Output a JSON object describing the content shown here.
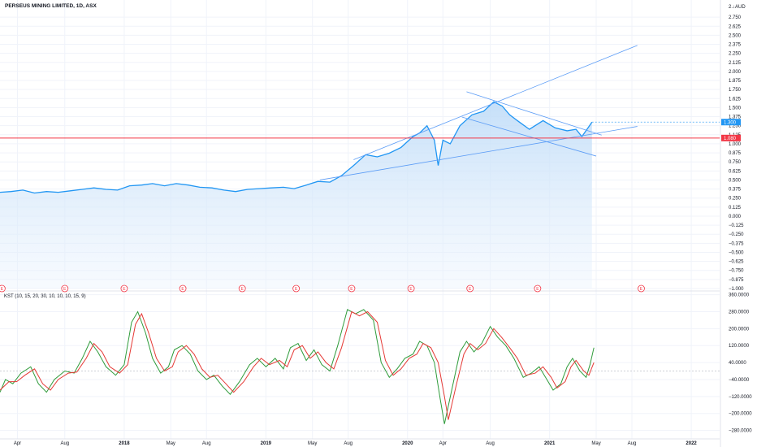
{
  "header": {
    "title": "PERSEUS MINING LIMITED, 1D, ASX"
  },
  "colors": {
    "price_line": "#2196f3",
    "price_fill": "#d6e9fb",
    "support_line": "#f23645",
    "trend_line": "#5b9cf6",
    "kst_line": "#2e9b3a",
    "kst_signal": "#e53935",
    "grid": "#f0f3fa",
    "earnings_marker": "#f23645"
  },
  "chart_data": [
    {
      "type": "line",
      "title": "PERSEUS MINING LIMITED, 1D, ASX",
      "currency_label": "2.↓AUD",
      "ylim": [
        -1.0,
        2.875
      ],
      "y_ticks": [
        "2.750",
        "2.625",
        "2.500",
        "2.375",
        "2.250",
        "2.125",
        "2.000",
        "1.875",
        "1.750",
        "1.625",
        "1.500",
        "1.375",
        "1.250",
        "1.125",
        "1.000",
        "0.875",
        "0.750",
        "0.625",
        "0.500",
        "0.375",
        "0.250",
        "0.125",
        "0.000",
        "−0.125",
        "−0.250",
        "−0.375",
        "−0.500",
        "−0.625",
        "−0.750",
        "−0.875",
        "−1.000"
      ],
      "x_tick_labels": [
        "Apr",
        "Aug",
        "2018",
        "May",
        "Aug",
        "2019",
        "May",
        "Aug",
        "2020",
        "Apr",
        "Aug",
        "2021",
        "May",
        "Aug",
        "2022"
      ],
      "x_range": [
        "2017-02-15",
        "2022-03-15"
      ],
      "x_ticks": [
        "2017-04-01",
        "2017-08-01",
        "2018-01-01",
        "2018-05-01",
        "2018-08-01",
        "2019-01-01",
        "2019-05-01",
        "2019-08-01",
        "2020-01-01",
        "2020-04-01",
        "2020-08-01",
        "2021-01-01",
        "2021-05-01",
        "2021-08-01",
        "2022-01-01"
      ],
      "price_points": [
        [
          "2017-02-15",
          0.33
        ],
        [
          "2017-03-15",
          0.34
        ],
        [
          "2017-04-15",
          0.36
        ],
        [
          "2017-05-15",
          0.32
        ],
        [
          "2017-06-15",
          0.34
        ],
        [
          "2017-07-15",
          0.33
        ],
        [
          "2017-08-15",
          0.35
        ],
        [
          "2017-09-15",
          0.37
        ],
        [
          "2017-10-15",
          0.39
        ],
        [
          "2017-11-15",
          0.37
        ],
        [
          "2017-12-15",
          0.36
        ],
        [
          "2018-01-15",
          0.42
        ],
        [
          "2018-02-15",
          0.43
        ],
        [
          "2018-03-15",
          0.45
        ],
        [
          "2018-04-15",
          0.42
        ],
        [
          "2018-05-15",
          0.45
        ],
        [
          "2018-06-15",
          0.43
        ],
        [
          "2018-07-15",
          0.4
        ],
        [
          "2018-08-15",
          0.39
        ],
        [
          "2018-09-15",
          0.36
        ],
        [
          "2018-10-15",
          0.34
        ],
        [
          "2018-11-15",
          0.37
        ],
        [
          "2018-12-15",
          0.38
        ],
        [
          "2019-01-15",
          0.39
        ],
        [
          "2019-02-15",
          0.4
        ],
        [
          "2019-03-15",
          0.38
        ],
        [
          "2019-04-15",
          0.43
        ],
        [
          "2019-05-15",
          0.48
        ],
        [
          "2019-06-15",
          0.47
        ],
        [
          "2019-07-15",
          0.56
        ],
        [
          "2019-08-15",
          0.7
        ],
        [
          "2019-09-15",
          0.85
        ],
        [
          "2019-10-15",
          0.82
        ],
        [
          "2019-11-15",
          0.87
        ],
        [
          "2019-12-15",
          0.95
        ],
        [
          "2020-01-15",
          1.1
        ],
        [
          "2020-02-01",
          1.15
        ],
        [
          "2020-02-20",
          1.25
        ],
        [
          "2020-03-10",
          1.05
        ],
        [
          "2020-03-20",
          0.7
        ],
        [
          "2020-04-01",
          1.05
        ],
        [
          "2020-04-20",
          1.0
        ],
        [
          "2020-05-15",
          1.25
        ],
        [
          "2020-06-15",
          1.4
        ],
        [
          "2020-07-15",
          1.45
        ],
        [
          "2020-08-10",
          1.58
        ],
        [
          "2020-09-01",
          1.52
        ],
        [
          "2020-09-20",
          1.4
        ],
        [
          "2020-10-15",
          1.3
        ],
        [
          "2020-11-10",
          1.2
        ],
        [
          "2020-12-15",
          1.32
        ],
        [
          "2021-01-15",
          1.22
        ],
        [
          "2021-02-15",
          1.18
        ],
        [
          "2021-03-10",
          1.2
        ],
        [
          "2021-03-25",
          1.1
        ],
        [
          "2021-04-10",
          1.22
        ],
        [
          "2021-04-20",
          1.3
        ]
      ],
      "current_price_label": "1.300",
      "current_price": 1.3,
      "support_label": "1.080",
      "support_price": 1.08,
      "earnings_marker_label": "E",
      "earnings_dates": [
        "2017-02-20",
        "2017-08-01",
        "2018-01-01",
        "2018-06-01",
        "2018-11-01",
        "2019-03-20",
        "2019-08-10",
        "2020-01-10",
        "2020-06-10",
        "2020-12-01",
        "2021-08-25"
      ],
      "trend_lines": [
        {
          "from": [
            "2019-08-15",
            0.78
          ],
          "to": [
            "2021-08-15",
            2.36
          ]
        },
        {
          "from": [
            "2019-05-20",
            0.5
          ],
          "to": [
            "2021-08-15",
            1.24
          ]
        },
        {
          "from": [
            "2020-06-01",
            1.72
          ],
          "to": [
            "2021-05-15",
            1.12
          ]
        },
        {
          "from": [
            "2020-05-20",
            1.37
          ],
          "to": [
            "2021-05-01",
            0.83
          ]
        }
      ]
    },
    {
      "type": "line",
      "title": "KST (10, 15, 20, 30, 10, 10, 10, 15, 9)",
      "ylim": [
        -320,
        370
      ],
      "y_ticks": [
        "360.0000",
        "280.0000",
        "200.0000",
        "120.0000",
        "40.0000",
        "−40.0000",
        "−120.0000",
        "−200.0000",
        "−280.0000"
      ],
      "zero_value": 0,
      "series": [
        {
          "values": [
            [
              "2017-02-15",
              -100
            ],
            [
              "2017-03-01",
              -40
            ],
            [
              "2017-03-20",
              -60
            ],
            [
              "2017-04-10",
              -10
            ],
            [
              "2017-05-05",
              20
            ],
            [
              "2017-05-25",
              -60
            ],
            [
              "2017-06-15",
              -100
            ],
            [
              "2017-07-05",
              -40
            ],
            [
              "2017-08-01",
              0
            ],
            [
              "2017-08-25",
              -10
            ],
            [
              "2017-09-15",
              60
            ],
            [
              "2017-10-05",
              140
            ],
            [
              "2017-10-25",
              90
            ],
            [
              "2017-11-15",
              20
            ],
            [
              "2017-12-10",
              -20
            ],
            [
              "2018-01-01",
              30
            ],
            [
              "2018-01-20",
              230
            ],
            [
              "2018-02-05",
              280
            ],
            [
              "2018-02-25",
              180
            ],
            [
              "2018-03-15",
              60
            ],
            [
              "2018-04-05",
              -10
            ],
            [
              "2018-04-25",
              20
            ],
            [
              "2018-05-10",
              100
            ],
            [
              "2018-05-30",
              120
            ],
            [
              "2018-06-20",
              80
            ],
            [
              "2018-07-10",
              0
            ],
            [
              "2018-08-01",
              -40
            ],
            [
              "2018-08-20",
              -20
            ],
            [
              "2018-09-10",
              -70
            ],
            [
              "2018-10-01",
              -110
            ],
            [
              "2018-10-25",
              -50
            ],
            [
              "2018-11-20",
              30
            ],
            [
              "2018-12-10",
              60
            ],
            [
              "2019-01-01",
              20
            ],
            [
              "2019-01-25",
              60
            ],
            [
              "2019-02-15",
              10
            ],
            [
              "2019-03-05",
              110
            ],
            [
              "2019-03-25",
              130
            ],
            [
              "2019-04-15",
              50
            ],
            [
              "2019-05-05",
              100
            ],
            [
              "2019-05-25",
              30
            ],
            [
              "2019-06-15",
              0
            ],
            [
              "2019-07-05",
              120
            ],
            [
              "2019-07-30",
              290
            ],
            [
              "2019-08-20",
              270
            ],
            [
              "2019-09-10",
              290
            ],
            [
              "2019-10-05",
              240
            ],
            [
              "2019-10-25",
              40
            ],
            [
              "2019-11-15",
              -30
            ],
            [
              "2019-12-05",
              10
            ],
            [
              "2019-12-25",
              60
            ],
            [
              "2020-01-15",
              80
            ],
            [
              "2020-02-01",
              140
            ],
            [
              "2020-02-20",
              120
            ],
            [
              "2020-03-10",
              40
            ],
            [
              "2020-03-25",
              -130
            ],
            [
              "2020-04-05",
              -250
            ],
            [
              "2020-04-25",
              -80
            ],
            [
              "2020-05-15",
              90
            ],
            [
              "2020-06-01",
              140
            ],
            [
              "2020-06-20",
              90
            ],
            [
              "2020-07-10",
              130
            ],
            [
              "2020-08-01",
              210
            ],
            [
              "2020-08-20",
              160
            ],
            [
              "2020-09-10",
              120
            ],
            [
              "2020-10-01",
              60
            ],
            [
              "2020-10-25",
              -30
            ],
            [
              "2020-11-15",
              -10
            ],
            [
              "2020-12-05",
              20
            ],
            [
              "2020-12-25",
              -40
            ],
            [
              "2021-01-10",
              -90
            ],
            [
              "2021-01-30",
              -60
            ],
            [
              "2021-02-15",
              20
            ],
            [
              "2021-03-01",
              60
            ],
            [
              "2021-03-20",
              0
            ],
            [
              "2021-04-05",
              -30
            ],
            [
              "2021-04-15",
              30
            ],
            [
              "2021-04-25",
              110
            ]
          ]
        },
        {
          "values": [
            [
              "2017-02-15",
              -90
            ],
            [
              "2017-03-10",
              -50
            ],
            [
              "2017-03-30",
              -50
            ],
            [
              "2017-04-20",
              -20
            ],
            [
              "2017-05-15",
              10
            ],
            [
              "2017-06-05",
              -60
            ],
            [
              "2017-06-25",
              -90
            ],
            [
              "2017-07-15",
              -40
            ],
            [
              "2017-08-10",
              -10
            ],
            [
              "2017-09-01",
              -5
            ],
            [
              "2017-09-25",
              60
            ],
            [
              "2017-10-15",
              130
            ],
            [
              "2017-11-05",
              90
            ],
            [
              "2017-11-25",
              20
            ],
            [
              "2017-12-20",
              -10
            ],
            [
              "2018-01-10",
              30
            ],
            [
              "2018-01-30",
              220
            ],
            [
              "2018-02-15",
              270
            ],
            [
              "2018-03-05",
              180
            ],
            [
              "2018-03-25",
              60
            ],
            [
              "2018-04-15",
              0
            ],
            [
              "2018-05-05",
              20
            ],
            [
              "2018-05-20",
              90
            ],
            [
              "2018-06-10",
              120
            ],
            [
              "2018-06-30",
              80
            ],
            [
              "2018-07-20",
              10
            ],
            [
              "2018-08-10",
              -30
            ],
            [
              "2018-08-30",
              -20
            ],
            [
              "2018-09-20",
              -60
            ],
            [
              "2018-10-10",
              -100
            ],
            [
              "2018-11-05",
              -50
            ],
            [
              "2018-11-30",
              20
            ],
            [
              "2018-12-20",
              60
            ],
            [
              "2019-01-10",
              30
            ],
            [
              "2019-02-05",
              50
            ],
            [
              "2019-02-25",
              20
            ],
            [
              "2019-03-15",
              100
            ],
            [
              "2019-04-05",
              120
            ],
            [
              "2019-04-25",
              60
            ],
            [
              "2019-05-15",
              90
            ],
            [
              "2019-06-05",
              40
            ],
            [
              "2019-06-25",
              10
            ],
            [
              "2019-07-15",
              110
            ],
            [
              "2019-08-10",
              280
            ],
            [
              "2019-08-30",
              260
            ],
            [
              "2019-09-20",
              280
            ],
            [
              "2019-10-15",
              230
            ],
            [
              "2019-11-05",
              50
            ],
            [
              "2019-11-25",
              -20
            ],
            [
              "2019-12-15",
              10
            ],
            [
              "2020-01-05",
              60
            ],
            [
              "2020-01-25",
              80
            ],
            [
              "2020-02-10",
              130
            ],
            [
              "2020-03-01",
              110
            ],
            [
              "2020-03-20",
              40
            ],
            [
              "2020-04-05",
              -120
            ],
            [
              "2020-04-15",
              -230
            ],
            [
              "2020-05-05",
              -70
            ],
            [
              "2020-05-25",
              80
            ],
            [
              "2020-06-10",
              130
            ],
            [
              "2020-06-30",
              100
            ],
            [
              "2020-07-20",
              130
            ],
            [
              "2020-08-10",
              200
            ],
            [
              "2020-08-30",
              160
            ],
            [
              "2020-09-20",
              110
            ],
            [
              "2020-10-10",
              60
            ],
            [
              "2020-11-01",
              -20
            ],
            [
              "2020-11-25",
              -10
            ],
            [
              "2020-12-15",
              20
            ],
            [
              "2021-01-05",
              -30
            ],
            [
              "2021-01-20",
              -80
            ],
            [
              "2021-02-10",
              -50
            ],
            [
              "2021-02-25",
              20
            ],
            [
              "2021-03-10",
              50
            ],
            [
              "2021-03-30",
              0
            ],
            [
              "2021-04-12",
              -20
            ],
            [
              "2021-04-25",
              40
            ]
          ]
        }
      ]
    }
  ]
}
